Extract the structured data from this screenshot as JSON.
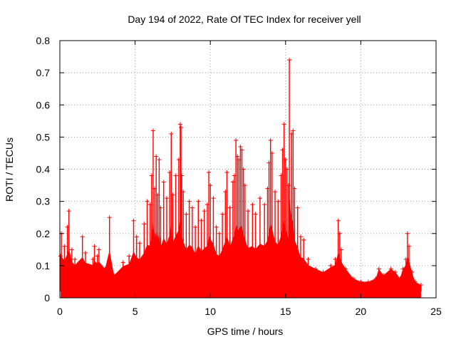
{
  "chart_data": {
    "type": "scatter",
    "title": "Day 194 of 2022, Rate Of TEC Index for receiver yell",
    "xlabel": "GPS time / hours",
    "ylabel": "ROTI / TECUs",
    "xlim": [
      0,
      25
    ],
    "ylim": [
      0,
      0.8
    ],
    "xticks": [
      "0",
      "5",
      "10",
      "15",
      "20",
      "25"
    ],
    "yticks": [
      "0",
      "0.1",
      "0.2",
      "0.3",
      "0.4",
      "0.5",
      "0.6",
      "0.7",
      "0.8"
    ],
    "grid": true,
    "marker": "plus",
    "color": "#ff0000",
    "series": [
      {
        "points": [
          [
            0.05,
            0.13
          ],
          [
            0.1,
            0.2
          ],
          [
            0.3,
            0.16
          ],
          [
            0.5,
            0.22
          ],
          [
            0.6,
            0.27
          ],
          [
            0.8,
            0.15
          ],
          [
            1.0,
            0.12
          ],
          [
            1.5,
            0.19
          ],
          [
            1.7,
            0.14
          ],
          [
            2.2,
            0.12
          ],
          [
            2.3,
            0.16
          ],
          [
            2.5,
            0.13
          ],
          [
            2.6,
            0.15
          ],
          [
            3.0,
            0.09
          ],
          [
            3.3,
            0.25
          ],
          [
            3.6,
            0.07
          ],
          [
            4.2,
            0.11
          ],
          [
            4.6,
            0.13
          ],
          [
            4.9,
            0.24
          ],
          [
            5.1,
            0.19
          ],
          [
            5.3,
            0.17
          ],
          [
            5.6,
            0.23
          ],
          [
            5.8,
            0.3
          ],
          [
            6.0,
            0.29
          ],
          [
            6.1,
            0.38
          ],
          [
            6.2,
            0.52
          ],
          [
            6.3,
            0.34
          ],
          [
            6.4,
            0.44
          ],
          [
            6.5,
            0.32
          ],
          [
            6.6,
            0.43
          ],
          [
            6.7,
            0.28
          ],
          [
            6.9,
            0.36
          ],
          [
            7.1,
            0.31
          ],
          [
            7.3,
            0.39
          ],
          [
            7.4,
            0.51
          ],
          [
            7.5,
            0.32
          ],
          [
            7.7,
            0.38
          ],
          [
            7.9,
            0.43
          ],
          [
            8.0,
            0.54
          ],
          [
            8.05,
            0.53
          ],
          [
            8.1,
            0.38
          ],
          [
            8.2,
            0.33
          ],
          [
            8.4,
            0.26
          ],
          [
            8.6,
            0.3
          ],
          [
            8.8,
            0.28
          ],
          [
            9.0,
            0.22
          ],
          [
            9.2,
            0.3
          ],
          [
            9.4,
            0.24
          ],
          [
            9.6,
            0.27
          ],
          [
            9.8,
            0.29
          ],
          [
            9.9,
            0.39
          ],
          [
            10.0,
            0.35
          ],
          [
            10.2,
            0.31
          ],
          [
            10.4,
            0.22
          ],
          [
            10.6,
            0.2
          ],
          [
            10.8,
            0.26
          ],
          [
            11.0,
            0.33
          ],
          [
            11.1,
            0.39
          ],
          [
            11.3,
            0.28
          ],
          [
            11.5,
            0.36
          ],
          [
            11.6,
            0.38
          ],
          [
            11.7,
            0.49
          ],
          [
            11.8,
            0.44
          ],
          [
            11.9,
            0.43
          ],
          [
            12.0,
            0.47
          ],
          [
            12.1,
            0.46
          ],
          [
            12.2,
            0.4
          ],
          [
            12.3,
            0.35
          ],
          [
            12.5,
            0.27
          ],
          [
            12.8,
            0.29
          ],
          [
            13.0,
            0.26
          ],
          [
            13.3,
            0.31
          ],
          [
            13.6,
            0.29
          ],
          [
            13.8,
            0.34
          ],
          [
            13.9,
            0.42
          ],
          [
            14.0,
            0.49
          ],
          [
            14.1,
            0.45
          ],
          [
            14.3,
            0.33
          ],
          [
            14.5,
            0.3
          ],
          [
            14.7,
            0.38
          ],
          [
            14.8,
            0.46
          ],
          [
            14.9,
            0.54
          ],
          [
            15.0,
            0.43
          ],
          [
            15.1,
            0.4
          ],
          [
            15.2,
            0.35
          ],
          [
            15.25,
            0.74
          ],
          [
            15.4,
            0.51
          ],
          [
            15.5,
            0.52
          ],
          [
            15.6,
            0.34
          ],
          [
            15.8,
            0.28
          ],
          [
            16.0,
            0.19
          ],
          [
            16.2,
            0.18
          ],
          [
            16.5,
            0.12
          ],
          [
            17.0,
            0.09
          ],
          [
            17.5,
            0.08
          ],
          [
            18.0,
            0.1
          ],
          [
            18.3,
            0.12
          ],
          [
            18.5,
            0.24
          ],
          [
            18.6,
            0.2
          ],
          [
            18.7,
            0.15
          ],
          [
            19.0,
            0.09
          ],
          [
            19.5,
            0.06
          ],
          [
            20.0,
            0.05
          ],
          [
            20.5,
            0.05
          ],
          [
            21.0,
            0.06
          ],
          [
            21.2,
            0.09
          ],
          [
            21.5,
            0.07
          ],
          [
            22.0,
            0.09
          ],
          [
            22.3,
            0.08
          ],
          [
            22.6,
            0.06
          ],
          [
            22.8,
            0.09
          ],
          [
            23.0,
            0.12
          ],
          [
            23.1,
            0.2
          ],
          [
            23.2,
            0.16
          ],
          [
            23.4,
            0.08
          ],
          [
            23.6,
            0.05
          ],
          [
            24.0,
            0.04
          ]
        ]
      }
    ]
  }
}
